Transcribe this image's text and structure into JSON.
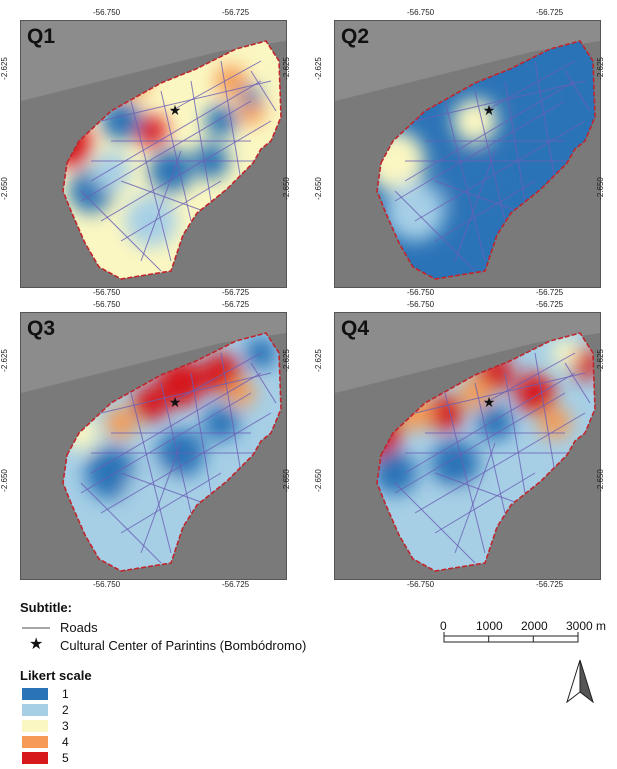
{
  "panels": [
    {
      "label": "Q1",
      "key": "q1"
    },
    {
      "label": "Q2",
      "key": "q2"
    },
    {
      "label": "Q3",
      "key": "q3"
    },
    {
      "label": "Q4",
      "key": "q4"
    }
  ],
  "axes": {
    "lon_left": "-56.750",
    "lon_right": "-56.725",
    "lat_top": "-2.625",
    "lat_bottom": "-2.650"
  },
  "legend": {
    "subtitle_heading": "Subtitle:",
    "roads_label": "Roads",
    "cultural_center_label": "Cultural Center of Parintins (Bombódromo)",
    "likert_heading": "Likert scale",
    "likert": [
      {
        "value": "1",
        "color": "#2b73b7"
      },
      {
        "value": "2",
        "color": "#a6cfe6"
      },
      {
        "value": "3",
        "color": "#fbf7c2"
      },
      {
        "value": "4",
        "color": "#f59b55"
      },
      {
        "value": "5",
        "color": "#d7191c"
      }
    ]
  },
  "scalebar": {
    "ticks": [
      "0",
      "1000",
      "2000",
      "3000 m"
    ]
  },
  "colors": {
    "boundary": "#c0262d",
    "roads": "#6a5fb5",
    "background": "#7a7a7a"
  }
}
